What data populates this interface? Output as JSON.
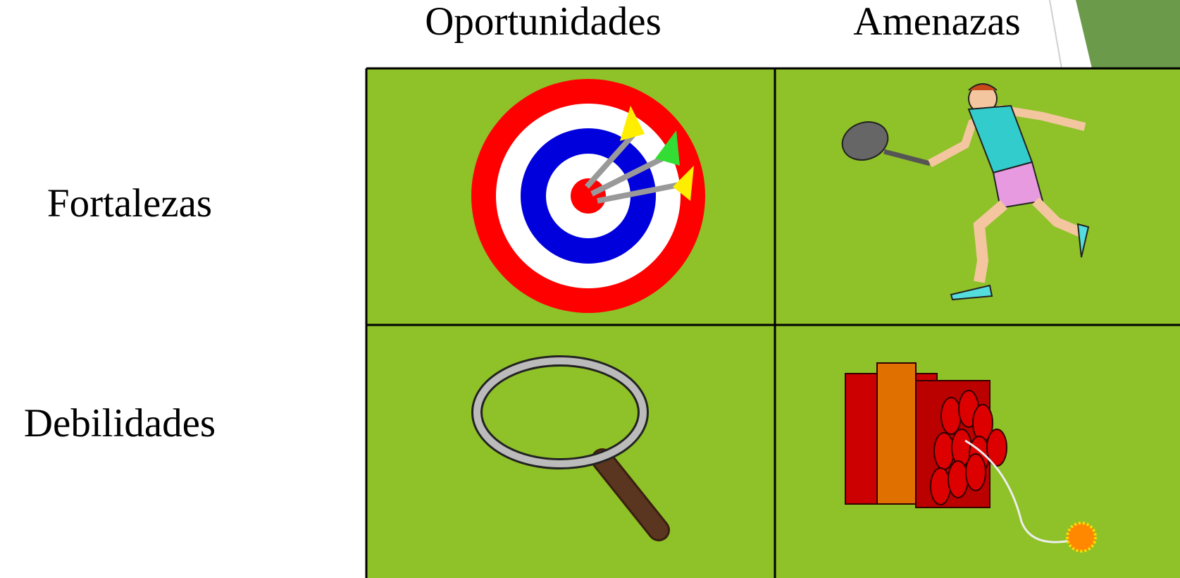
{
  "header": {
    "columns": [
      "Oportunidades",
      "Amenazas"
    ]
  },
  "rows": [
    "Fortalezas",
    "Debilidades"
  ]
}
